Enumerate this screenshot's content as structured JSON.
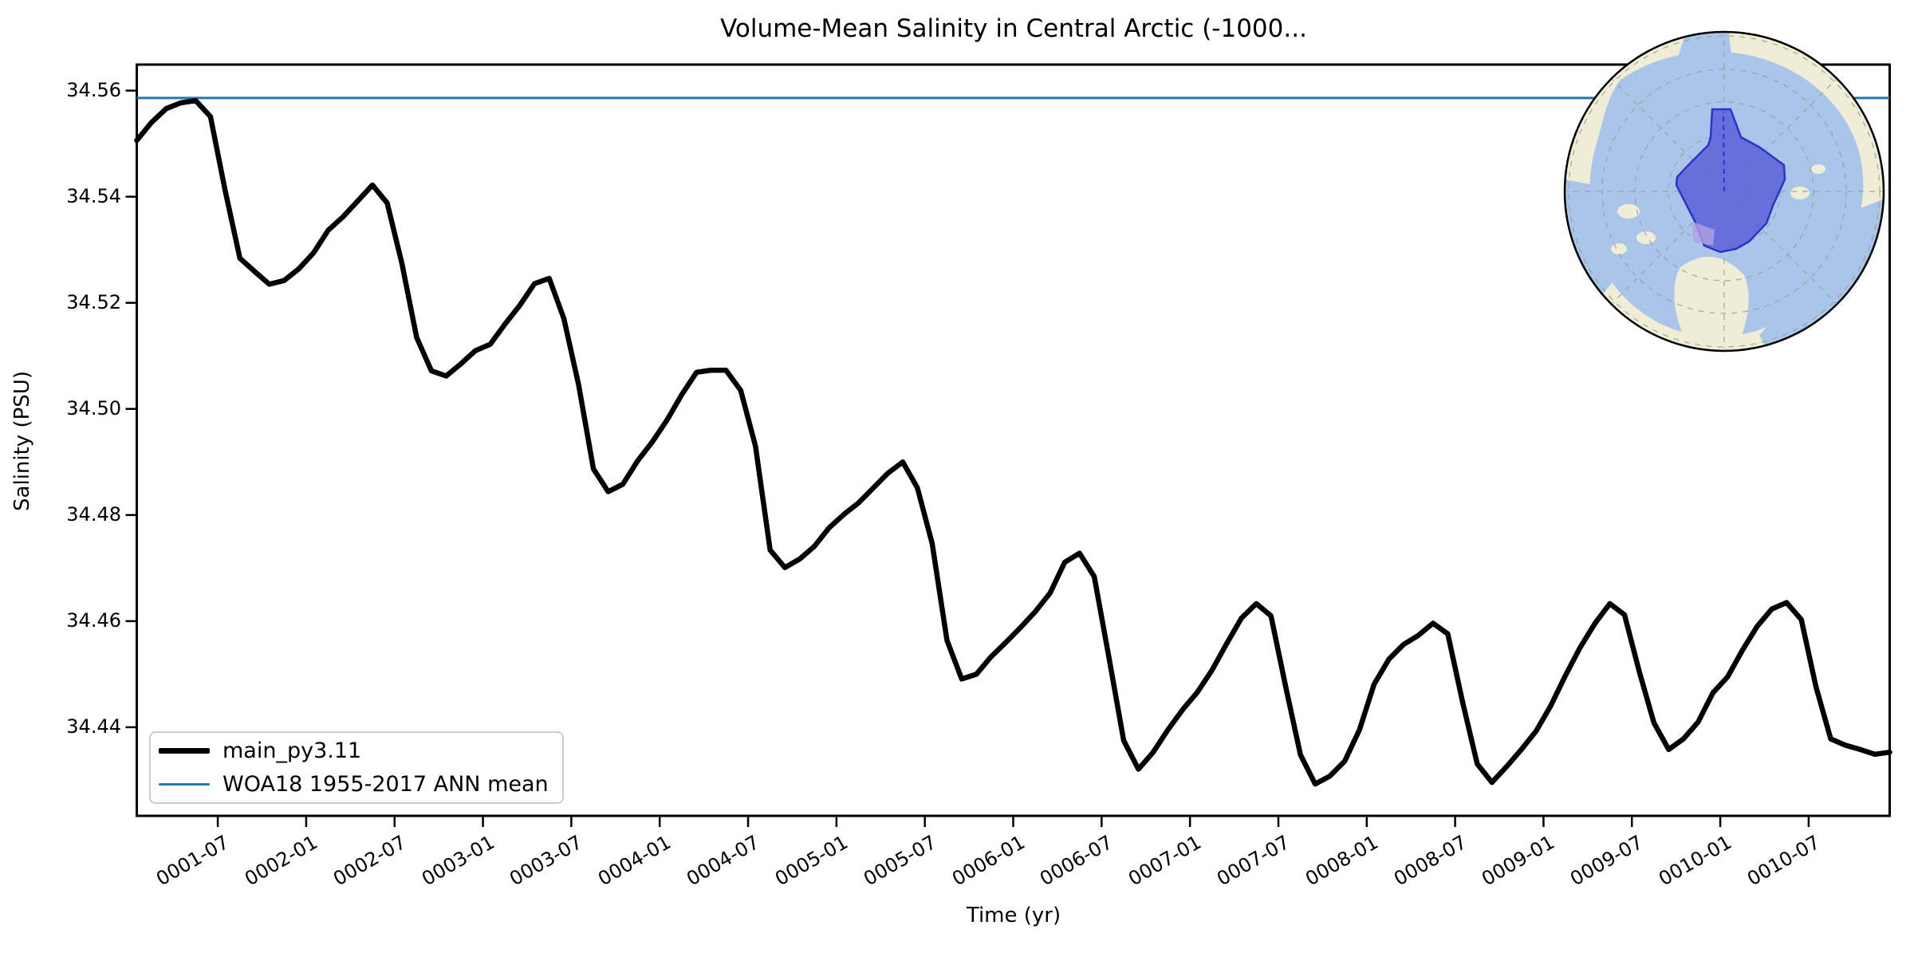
{
  "chart_data": {
    "type": "line",
    "title": "Volume-Mean Salinity in Central Arctic (-1000...",
    "xlabel": "Time (yr)",
    "ylabel": "Salinity (PSU)",
    "ylim": [
      34.4233,
      34.5649
    ],
    "grid": false,
    "legend_position": "lower left",
    "y_tick_labels": [
      "34.56",
      "34.54",
      "34.52",
      "34.50",
      "34.48",
      "34.46",
      "34.44"
    ],
    "y_tick_values": [
      34.56,
      34.54,
      34.52,
      34.5,
      34.48,
      34.46,
      34.44
    ],
    "x_tick_labels": [
      "0001-07",
      "0002-01",
      "0002-07",
      "0003-01",
      "0003-07",
      "0004-01",
      "0004-07",
      "0005-01",
      "0005-07",
      "0006-01",
      "0006-07",
      "0007-01",
      "0007-07",
      "0008-01",
      "0008-07",
      "0009-01",
      "0009-07",
      "0010-01",
      "0010-07"
    ],
    "x": [
      "0001-01",
      "0001-02",
      "0001-03",
      "0001-04",
      "0001-05",
      "0001-06",
      "0001-07",
      "0001-08",
      "0001-09",
      "0001-10",
      "0001-11",
      "0001-12",
      "0002-01",
      "0002-02",
      "0002-03",
      "0002-04",
      "0002-05",
      "0002-06",
      "0002-07",
      "0002-08",
      "0002-09",
      "0002-10",
      "0002-11",
      "0002-12",
      "0003-01",
      "0003-02",
      "0003-03",
      "0003-04",
      "0003-05",
      "0003-06",
      "0003-07",
      "0003-08",
      "0003-09",
      "0003-10",
      "0003-11",
      "0003-12",
      "0004-01",
      "0004-02",
      "0004-03",
      "0004-04",
      "0004-05",
      "0004-06",
      "0004-07",
      "0004-08",
      "0004-09",
      "0004-10",
      "0004-11",
      "0004-12",
      "0005-01",
      "0005-02",
      "0005-03",
      "0005-04",
      "0005-05",
      "0005-06",
      "0005-07",
      "0005-08",
      "0005-09",
      "0005-10",
      "0005-11",
      "0005-12",
      "0006-01",
      "0006-02",
      "0006-03",
      "0006-04",
      "0006-05",
      "0006-06",
      "0006-07",
      "0006-08",
      "0006-09",
      "0006-10",
      "0006-11",
      "0006-12",
      "0007-01",
      "0007-02",
      "0007-03",
      "0007-04",
      "0007-05",
      "0007-06",
      "0007-07",
      "0007-08",
      "0007-09",
      "0007-10",
      "0007-11",
      "0007-12",
      "0008-01",
      "0008-02",
      "0008-03",
      "0008-04",
      "0008-05",
      "0008-06",
      "0008-07",
      "0008-08",
      "0008-09",
      "0008-10",
      "0008-11",
      "0008-12",
      "0009-01",
      "0009-02",
      "0009-03",
      "0009-04",
      "0009-05",
      "0009-06",
      "0009-07",
      "0009-08",
      "0009-09",
      "0009-10",
      "0009-11",
      "0009-12",
      "0010-01",
      "0010-02",
      "0010-03",
      "0010-04",
      "0010-05",
      "0010-06",
      "0010-07",
      "0010-08",
      "0010-09",
      "0010-10",
      "0010-11",
      "0010-12"
    ],
    "series": [
      {
        "name": "main_py3.11",
        "color": "#000000",
        "line_width": 6.5,
        "values": [
          34.5506,
          34.554,
          34.5566,
          34.5577,
          34.5581,
          34.5551,
          34.5412,
          34.5284,
          34.5259,
          34.5235,
          34.5242,
          34.5264,
          34.5294,
          34.5337,
          34.5362,
          34.5392,
          34.5422,
          34.5388,
          34.5274,
          34.5135,
          34.5072,
          34.5062,
          34.5085,
          34.511,
          34.5122,
          34.516,
          34.5195,
          34.5236,
          34.5246,
          34.517,
          34.5045,
          34.4887,
          34.4844,
          34.4858,
          34.4902,
          34.4938,
          34.4979,
          34.5027,
          34.5069,
          34.5073,
          34.5073,
          34.5035,
          34.493,
          34.4734,
          34.4701,
          34.4717,
          34.4741,
          34.4776,
          34.4801,
          34.4823,
          34.4851,
          34.4879,
          34.49,
          34.4851,
          34.4746,
          34.4564,
          34.4491,
          34.45,
          34.4533,
          34.456,
          34.4588,
          34.4618,
          34.4653,
          34.4711,
          34.4728,
          34.4684,
          34.4531,
          34.4375,
          34.4321,
          34.4353,
          34.4395,
          34.4433,
          34.4466,
          34.4508,
          34.4558,
          34.4606,
          34.4633,
          34.461,
          34.4476,
          34.4348,
          34.4293,
          34.4308,
          34.4336,
          34.4395,
          34.4481,
          34.4528,
          34.4556,
          34.4573,
          34.4596,
          34.4576,
          34.4448,
          34.4331,
          34.4296,
          34.4326,
          34.4358,
          34.4393,
          34.4441,
          34.4498,
          34.4551,
          34.4596,
          34.4633,
          34.4612,
          34.4505,
          34.4408,
          34.4358,
          34.4378,
          34.441,
          34.4465,
          34.4495,
          34.4545,
          34.459,
          34.4623,
          34.4635,
          34.4603,
          34.4476,
          34.4378,
          34.4366,
          34.4358,
          34.4349,
          34.4353
        ]
      }
    ],
    "reference_line": {
      "label": "WOA18 1955-2017 ANN mean",
      "value": 34.5586,
      "color": "#1f77b4",
      "line_width": 3
    }
  },
  "legend": {
    "entries": [
      {
        "label": "main_py3.11",
        "color": "#000000",
        "line_height": 7
      },
      {
        "label": "WOA18 1955-2017 ANN mean",
        "color": "#1f77b4",
        "line_height": 3
      }
    ]
  },
  "inset_map": {
    "description": "north-polar-stereographic-map",
    "colors": {
      "land": "#efedd6",
      "ocean": "#a9c6ea",
      "region_fill": "#5a5fd8",
      "region_edge": "#2d33c8",
      "subregion_fill": "#b3a1e2",
      "graticule": "#9a9a8f",
      "outline": "#000000"
    }
  }
}
